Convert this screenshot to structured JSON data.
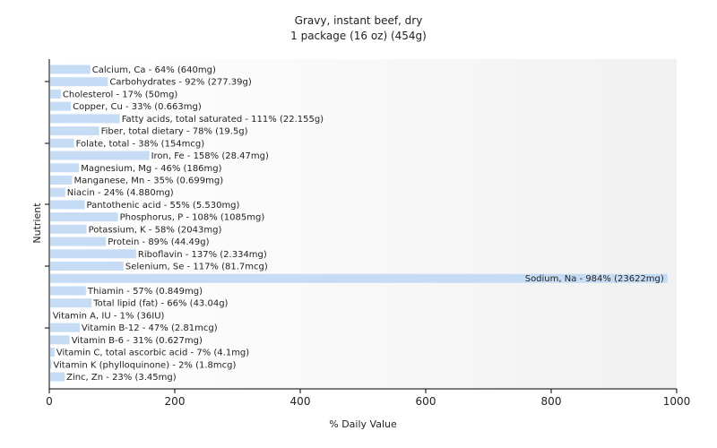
{
  "chart_data": {
    "type": "bar",
    "orientation": "horizontal",
    "title": "Gravy, instant beef, dry",
    "subtitle": "1 package (16 oz) (454g)",
    "xlabel": "% Daily Value",
    "ylabel": "Nutrient",
    "xlim": [
      0,
      1000
    ],
    "xticks": [
      0,
      200,
      400,
      600,
      800,
      1000
    ],
    "grid": false,
    "bar_color": "#c6dcf5",
    "categories": [
      "Calcium, Ca - 64% (640mg)",
      "Carbohydrates - 92% (277.39g)",
      "Cholesterol - 17% (50mg)",
      "Copper, Cu - 33% (0.663mg)",
      "Fatty acids, total saturated - 111% (22.155g)",
      "Fiber, total dietary - 78% (19.5g)",
      "Folate, total - 38% (154mcg)",
      "Iron, Fe - 158% (28.47mg)",
      "Magnesium, Mg - 46% (186mg)",
      "Manganese, Mn - 35% (0.699mg)",
      "Niacin - 24% (4.880mg)",
      "Pantothenic acid - 55% (5.530mg)",
      "Phosphorus, P - 108% (1085mg)",
      "Potassium, K - 58% (2043mg)",
      "Protein - 89% (44.49g)",
      "Riboflavin - 137% (2.334mg)",
      "Selenium, Se - 117% (81.7mcg)",
      "Sodium, Na - 984% (23622mg)",
      "Thiamin - 57% (0.849mg)",
      "Total lipid (fat) - 66% (43.04g)",
      "Vitamin A, IU - 1% (36IU)",
      "Vitamin B-12 - 47% (2.81mcg)",
      "Vitamin B-6 - 31% (0.627mg)",
      "Vitamin C, total ascorbic acid - 7% (4.1mg)",
      "Vitamin K (phylloquinone) - 2% (1.8mcg)",
      "Zinc, Zn - 23% (3.45mg)"
    ],
    "values": [
      64,
      92,
      17,
      33,
      111,
      78,
      38,
      158,
      46,
      35,
      24,
      55,
      108,
      58,
      89,
      137,
      117,
      984,
      57,
      66,
      1,
      47,
      31,
      7,
      2,
      23
    ]
  }
}
